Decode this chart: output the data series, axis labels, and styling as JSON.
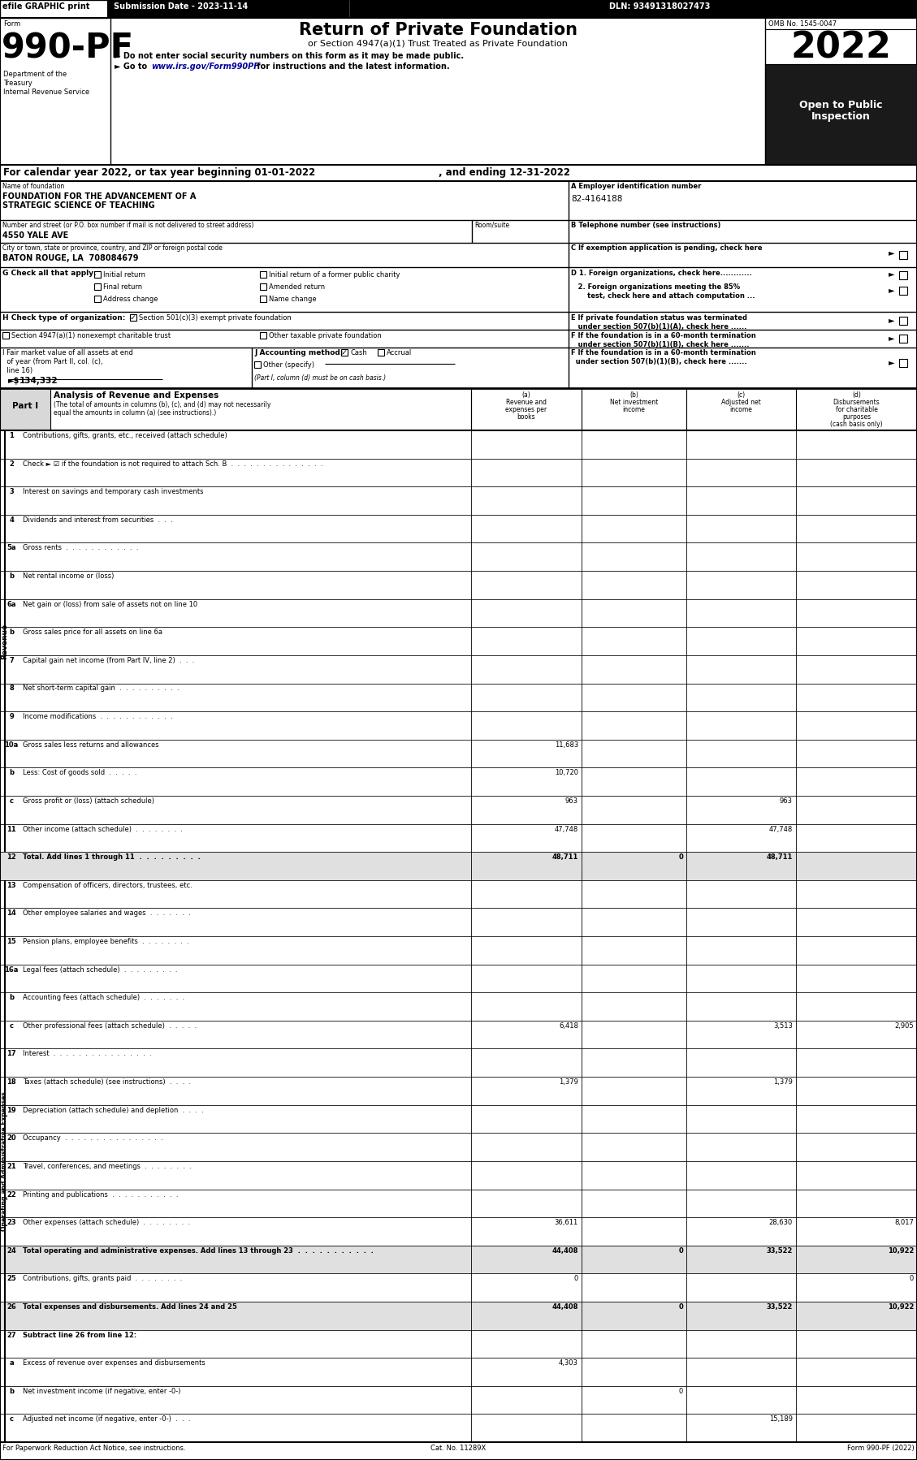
{
  "rows": [
    {
      "num": "1",
      "label": "Contributions, gifts, grants, etc., received (attach schedule)",
      "a": "",
      "b": "",
      "c": "",
      "d": ""
    },
    {
      "num": "2",
      "label": "Check ► ☑ if the foundation is not required to attach Sch. B  .  .  .  .  .  .  .  .  .  .  .  .  .  .  .",
      "a": "",
      "b": "",
      "c": "",
      "d": ""
    },
    {
      "num": "3",
      "label": "Interest on savings and temporary cash investments",
      "a": "",
      "b": "",
      "c": "",
      "d": ""
    },
    {
      "num": "4",
      "label": "Dividends and interest from securities  .  .  .",
      "a": "",
      "b": "",
      "c": "",
      "d": ""
    },
    {
      "num": "5a",
      "label": "Gross rents  .  .  .  .  .  .  .  .  .  .  .  .",
      "a": "",
      "b": "",
      "c": "",
      "d": ""
    },
    {
      "num": "b",
      "label": "Net rental income or (loss)",
      "a": "",
      "b": "",
      "c": "",
      "d": ""
    },
    {
      "num": "6a",
      "label": "Net gain or (loss) from sale of assets not on line 10",
      "a": "",
      "b": "",
      "c": "",
      "d": ""
    },
    {
      "num": "b",
      "label": "Gross sales price for all assets on line 6a",
      "a": "",
      "b": "",
      "c": "",
      "d": ""
    },
    {
      "num": "7",
      "label": "Capital gain net income (from Part IV, line 2)  .  .  .",
      "a": "",
      "b": "",
      "c": "",
      "d": ""
    },
    {
      "num": "8",
      "label": "Net short-term capital gain  .  .  .  .  .  .  .  .  .  .",
      "a": "",
      "b": "",
      "c": "",
      "d": ""
    },
    {
      "num": "9",
      "label": "Income modifications  .  .  .  .  .  .  .  .  .  .  .  .",
      "a": "",
      "b": "",
      "c": "",
      "d": ""
    },
    {
      "num": "10a",
      "label": "Gross sales less returns and allowances",
      "a": "11,683",
      "b": "",
      "c": "",
      "d": ""
    },
    {
      "num": "b",
      "label": "Less: Cost of goods sold  .  .  .  .  .",
      "a": "10,720",
      "b": "",
      "c": "",
      "d": ""
    },
    {
      "num": "c",
      "label": "Gross profit or (loss) (attach schedule)",
      "a": "963",
      "b": "",
      "c": "963",
      "d": ""
    },
    {
      "num": "11",
      "label": "Other income (attach schedule)  .  .  .  .  .  .  .  .",
      "a": "47,748",
      "b": "",
      "c": "47,748",
      "d": ""
    },
    {
      "num": "12",
      "label": "Total. Add lines 1 through 11  .  .  .  .  .  .  .  .  .",
      "a": "48,711",
      "b": "0",
      "c": "48,711",
      "d": "",
      "bold": true,
      "shaded": true
    },
    {
      "num": "13",
      "label": "Compensation of officers, directors, trustees, etc.",
      "a": "",
      "b": "",
      "c": "",
      "d": ""
    },
    {
      "num": "14",
      "label": "Other employee salaries and wages  .  .  .  .  .  .  .",
      "a": "",
      "b": "",
      "c": "",
      "d": ""
    },
    {
      "num": "15",
      "label": "Pension plans, employee benefits  .  .  .  .  .  .  .  .",
      "a": "",
      "b": "",
      "c": "",
      "d": ""
    },
    {
      "num": "16a",
      "label": "Legal fees (attach schedule)  .  .  .  .  .  .  .  .  .",
      "a": "",
      "b": "",
      "c": "",
      "d": ""
    },
    {
      "num": "b",
      "label": "Accounting fees (attach schedule)  .  .  .  .  .  .  .",
      "a": "",
      "b": "",
      "c": "",
      "d": ""
    },
    {
      "num": "c",
      "label": "Other professional fees (attach schedule)  .  .  .  .  .",
      "a": "6,418",
      "b": "",
      "c": "3,513",
      "d": "2,905"
    },
    {
      "num": "17",
      "label": "Interest  .  .  .  .  .  .  .  .  .  .  .  .  .  .  .  .",
      "a": "",
      "b": "",
      "c": "",
      "d": ""
    },
    {
      "num": "18",
      "label": "Taxes (attach schedule) (see instructions)  .  .  .  .",
      "a": "1,379",
      "b": "",
      "c": "1,379",
      "d": ""
    },
    {
      "num": "19",
      "label": "Depreciation (attach schedule) and depletion  .  .  .  .",
      "a": "",
      "b": "",
      "c": "",
      "d": ""
    },
    {
      "num": "20",
      "label": "Occupancy  .  .  .  .  .  .  .  .  .  .  .  .  .  .  .  .",
      "a": "",
      "b": "",
      "c": "",
      "d": ""
    },
    {
      "num": "21",
      "label": "Travel, conferences, and meetings  .  .  .  .  .  .  .  .",
      "a": "",
      "b": "",
      "c": "",
      "d": ""
    },
    {
      "num": "22",
      "label": "Printing and publications  .  .  .  .  .  .  .  .  .  .  .",
      "a": "",
      "b": "",
      "c": "",
      "d": ""
    },
    {
      "num": "23",
      "label": "Other expenses (attach schedule)  .  .  .  .  .  .  .  .",
      "a": "36,611",
      "b": "",
      "c": "28,630",
      "d": "8,017"
    },
    {
      "num": "24",
      "label": "Total operating and administrative expenses. Add lines 13 through 23  .  .  .  .  .  .  .  .  .  .  .",
      "a": "44,408",
      "b": "0",
      "c": "33,522",
      "d": "10,922",
      "bold": true,
      "shaded": true
    },
    {
      "num": "25",
      "label": "Contributions, gifts, grants paid  .  .  .  .  .  .  .  .",
      "a": "0",
      "b": "",
      "c": "",
      "d": "0"
    },
    {
      "num": "26",
      "label": "Total expenses and disbursements. Add lines 24 and 25",
      "a": "44,408",
      "b": "0",
      "c": "33,522",
      "d": "10,922",
      "bold": true,
      "shaded": true
    },
    {
      "num": "27",
      "label": "Subtract line 26 from line 12:",
      "a": "",
      "b": "",
      "c": "",
      "d": "",
      "bold": true
    },
    {
      "num": "a",
      "label": "Excess of revenue over expenses and disbursements",
      "a": "4,303",
      "b": "",
      "c": "",
      "d": ""
    },
    {
      "num": "b",
      "label": "Net investment income (if negative, enter -0-)",
      "a": "",
      "b": "0",
      "c": "",
      "d": ""
    },
    {
      "num": "c",
      "label": "Adjusted net income (if negative, enter -0-)  .  .  .",
      "a": "",
      "b": "",
      "c": "15,189",
      "d": ""
    }
  ]
}
